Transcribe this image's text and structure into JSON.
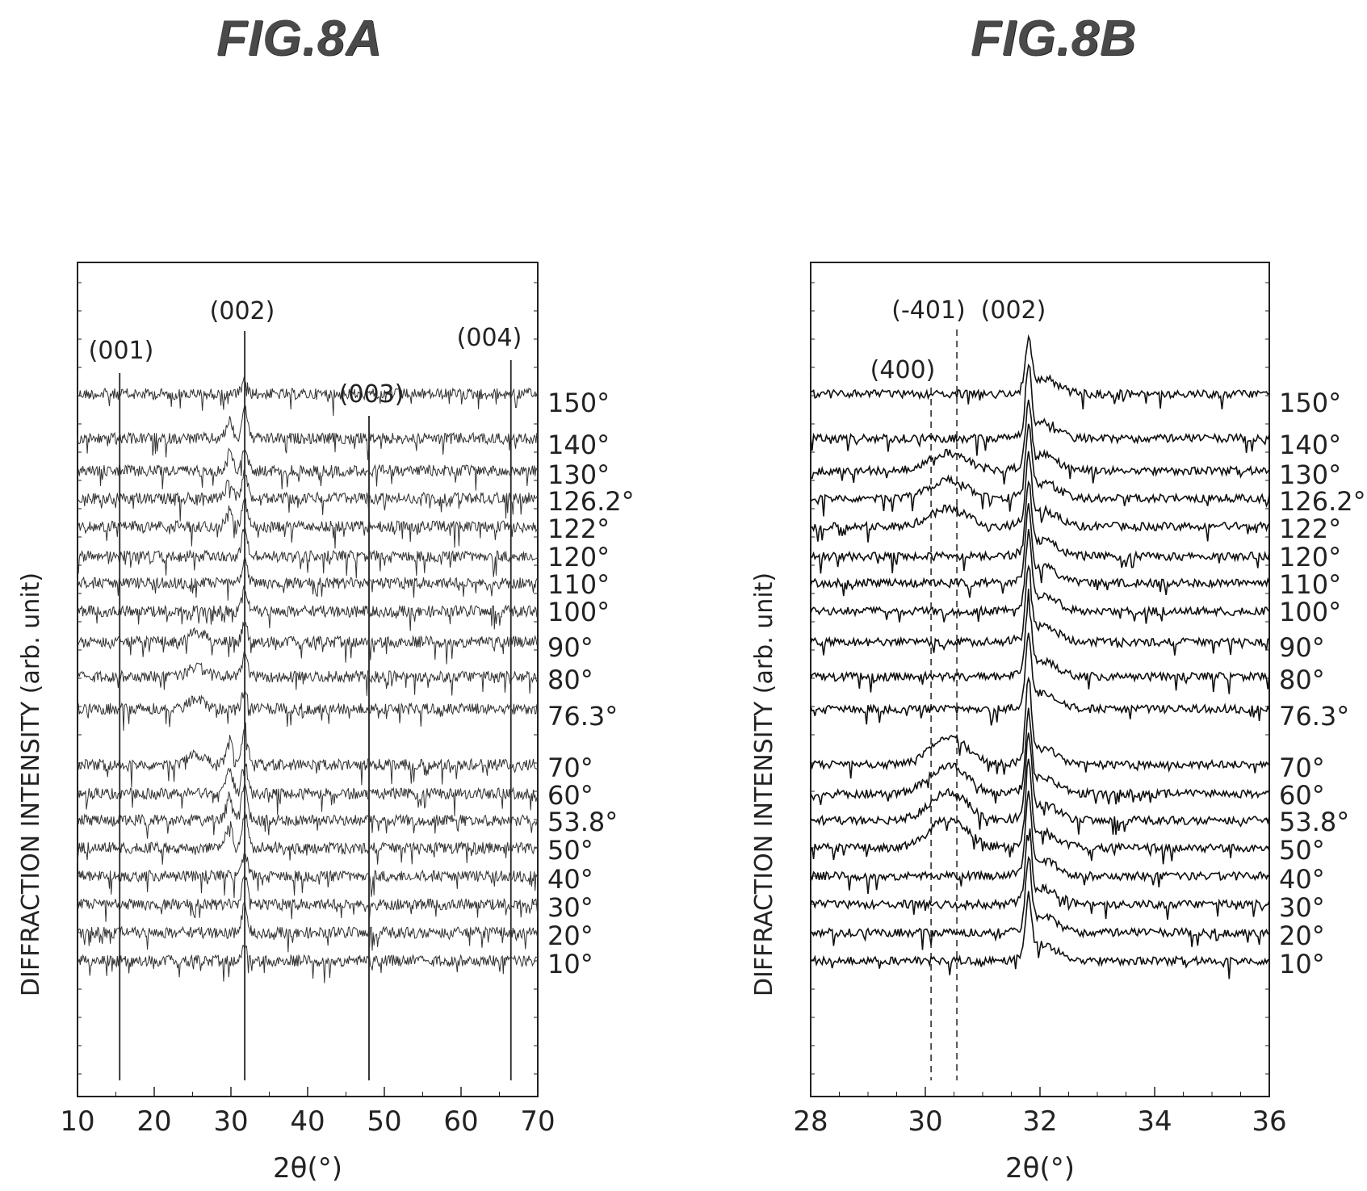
{
  "figures": {
    "a": {
      "title": "FIG.8A"
    },
    "b": {
      "title": "FIG.8B"
    }
  },
  "chart_data": [
    {
      "type": "line",
      "title": "FIG.8A",
      "xlabel": "2θ(°)",
      "ylabel": "DIFFRACTION INTENSITY (arb. unit)",
      "xlim": [
        10,
        70
      ],
      "x_ticks": [
        "10",
        "20",
        "30",
        "40",
        "50",
        "60",
        "70"
      ],
      "peaks": [
        {
          "label": "(001)",
          "x": 15.5
        },
        {
          "label": "(002)",
          "x": 31.8
        },
        {
          "label": "(003)",
          "x": 48.0
        },
        {
          "label": "(004)",
          "x": 66.5
        }
      ],
      "series_labels": [
        "150°",
        "140°",
        "130°",
        "126.2°",
        "122°",
        "120°",
        "110°",
        "100°",
        "90°",
        "80°",
        "76.3°",
        "70°",
        "60°",
        "53.8°",
        "50°",
        "40°",
        "30°",
        "20°",
        "10°"
      ],
      "line_style": "noisy traces, offset vertically"
    },
    {
      "type": "line",
      "title": "FIG.8B",
      "xlabel": "2θ(°)",
      "ylabel": "DIFFRACTION INTENSITY (arb. unit)",
      "xlim": [
        28,
        36
      ],
      "x_ticks": [
        "28",
        "30",
        "32",
        "34",
        "36"
      ],
      "peaks": [
        {
          "label": "(400)",
          "x": 30.1,
          "style": "dashed"
        },
        {
          "label": "(-401)",
          "x": 30.55,
          "style": "dashed"
        },
        {
          "label": "(002)",
          "x": 31.8,
          "style": "none"
        }
      ],
      "series_labels": [
        "150°",
        "140°",
        "130°",
        "126.2°",
        "122°",
        "120°",
        "110°",
        "100°",
        "90°",
        "80°",
        "76.3°",
        "70°",
        "60°",
        "53.8°",
        "50°",
        "40°",
        "30°",
        "20°",
        "10°"
      ]
    }
  ]
}
